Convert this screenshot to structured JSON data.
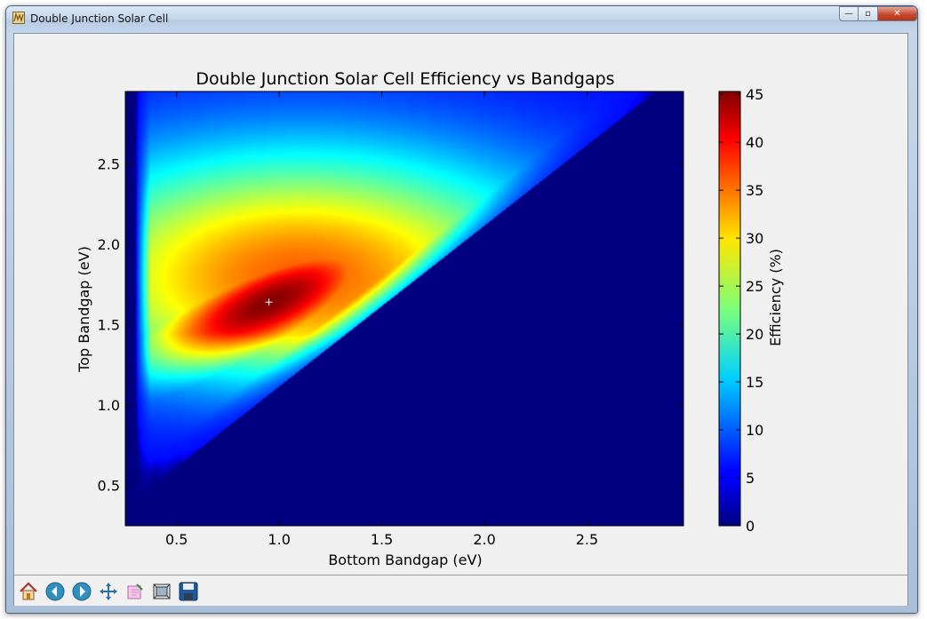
{
  "window": {
    "title": "Double Junction Solar Cell",
    "controls": {
      "minimize": "—",
      "maximize": "▫",
      "close": "✕"
    }
  },
  "toolbar": {
    "items": [
      "home-icon",
      "back-icon",
      "forward-icon",
      "pan-icon",
      "zoom-icon",
      "configure-icon",
      "save-icon"
    ]
  },
  "chart_data": {
    "type": "heatmap",
    "title": "Double Junction Solar Cell Efficiency vs Bandgaps",
    "xlabel": "Bottom Bandgap (eV)",
    "ylabel": "Top Bandgap (eV)",
    "colorbar_label": "Efficiency (%)",
    "colormap": "jet",
    "xlim": [
      0.25,
      2.97
    ],
    "ylim": [
      0.25,
      2.95
    ],
    "clim": [
      0,
      45.3
    ],
    "xticks": [
      0.5,
      1.0,
      1.5,
      2.0,
      2.5
    ],
    "xtick_labels": [
      "0.5",
      "1.0",
      "1.5",
      "2.0",
      "2.5"
    ],
    "yticks": [
      0.5,
      1.0,
      1.5,
      2.0,
      2.5
    ],
    "ytick_labels": [
      "0.5",
      "1.0",
      "1.5",
      "2.0",
      "2.5"
    ],
    "cticks": [
      0,
      5,
      10,
      15,
      20,
      25,
      30,
      35,
      40,
      45
    ],
    "ctick_labels": [
      "0",
      "5",
      "10",
      "15",
      "20",
      "25",
      "30",
      "35",
      "40",
      "45"
    ],
    "peak": {
      "bottom_bandgap": 0.95,
      "top_bandgap": 1.64,
      "efficiency": 45
    },
    "approx_efficiency_samples": [
      {
        "bottom_bandgap": 0.95,
        "top_bandgap": 1.64,
        "efficiency": 45
      },
      {
        "bottom_bandgap": 0.7,
        "top_bandgap": 1.5,
        "efficiency": 42
      },
      {
        "bottom_bandgap": 0.5,
        "top_bandgap": 2.0,
        "efficiency": 30
      },
      {
        "bottom_bandgap": 0.5,
        "top_bandgap": 2.5,
        "efficiency": 16
      },
      {
        "bottom_bandgap": 0.6,
        "top_bandgap": 1.0,
        "efficiency": 8
      },
      {
        "bottom_bandgap": 1.5,
        "top_bandgap": 2.2,
        "efficiency": 32
      },
      {
        "bottom_bandgap": 2.0,
        "top_bandgap": 2.5,
        "efficiency": 18
      },
      {
        "bottom_bandgap": 1.5,
        "top_bandgap": 1.2,
        "efficiency": 0
      }
    ],
    "grid": false,
    "legend": "none"
  }
}
